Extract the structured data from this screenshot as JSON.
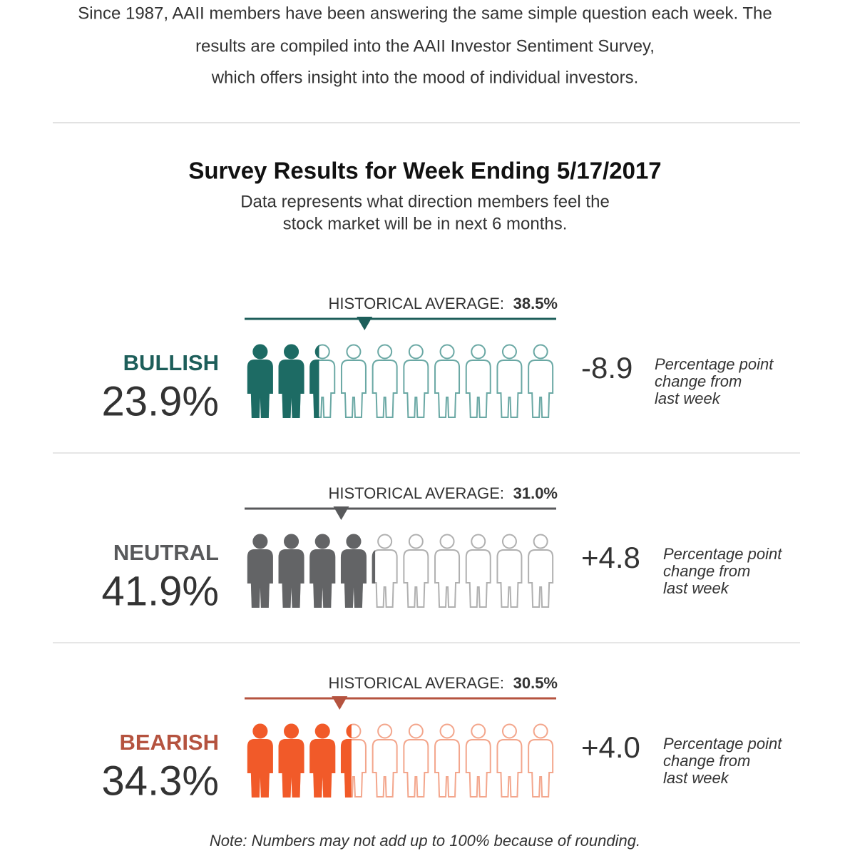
{
  "intro": [
    "Since 1987, AAII members have been answering the same simple question each week. The",
    "results are compiled into the AAII Investor Sentiment Survey,",
    "which offers insight into the mood of individual investors."
  ],
  "title": "Survey Results for Week Ending 5/17/2017",
  "subtitle": [
    "Data represents what direction members feel the",
    "stock market will be in next 6 months."
  ],
  "range": [
    0,
    100
  ],
  "sections": [
    {
      "name": "BULLISH",
      "value": 23.9,
      "value_label": "23.9%",
      "average_label": "HISTORICAL AVERAGE:",
      "average": 38.5,
      "average_value_label": "38.5%",
      "change": "-8.9",
      "change_note": [
        "Percentage point",
        "change from",
        "last week"
      ],
      "color": "#1d5e5a",
      "icon_color": "#1d6b64",
      "outline_color": "#6aa8a4"
    },
    {
      "name": "NEUTRAL",
      "value": 41.9,
      "value_label": "41.9%",
      "average_label": "HISTORICAL AVERAGE:",
      "average": 31.0,
      "average_value_label": "31.0%",
      "change": "+4.8",
      "change_note": [
        "Percentage point",
        "change from",
        "last week"
      ],
      "color": "#58595b",
      "icon_color": "#636466",
      "outline_color": "#b0b0b0"
    },
    {
      "name": "BEARISH",
      "value": 34.3,
      "value_label": "34.3%",
      "average_label": "HISTORICAL AVERAGE:",
      "average": 30.5,
      "average_value_label": "30.5%",
      "change": "+4.0",
      "change_note": [
        "Percentage point",
        "change from",
        "last week"
      ],
      "color": "#b5533f",
      "icon_color": "#f15a29",
      "outline_color": "#f3a68c"
    }
  ],
  "note": "Note: Numbers may not add up to 100% because of rounding."
}
